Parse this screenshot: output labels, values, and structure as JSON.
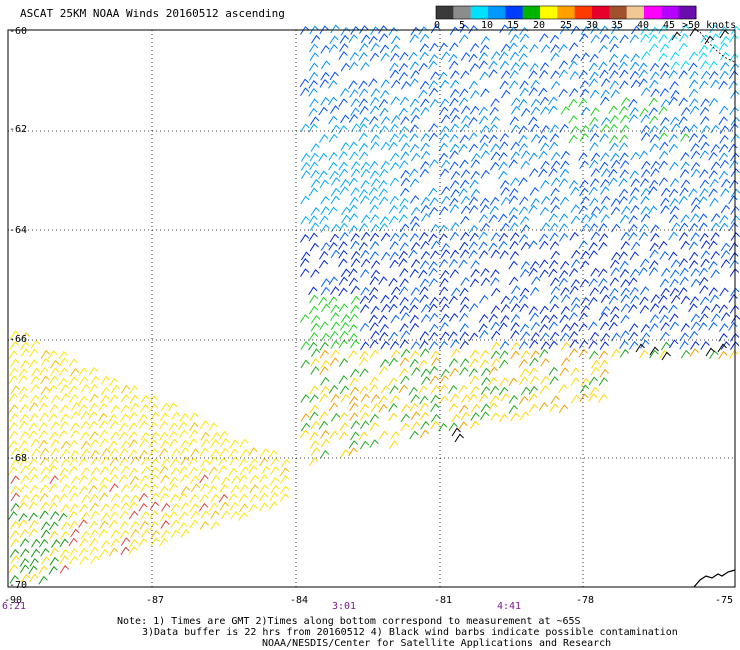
{
  "title": "ASCAT 25KM NOAA Winds 20160512 ascending",
  "colorbar": {
    "labels": [
      "0",
      "5",
      "10",
      "15",
      "20",
      "25",
      "30",
      "35",
      "40",
      "45",
      ">50 knots"
    ],
    "colors": [
      "#3a3a3a",
      "#8c8c8c",
      "#00e0ff",
      "#0097ff",
      "#003cff",
      "#00b400",
      "#ffff00",
      "#ffa000",
      "#ff3a00",
      "#e6002a",
      "#a0522d",
      "#f0c896",
      "#ff00ff",
      "#b400ff",
      "#6a0dad"
    ]
  },
  "map": {
    "lat_labels": [
      "-60",
      "-62",
      "-64",
      "-66",
      "-68",
      "-70"
    ],
    "lon_labels": [
      "-90",
      "-87",
      "-84",
      "-81",
      "-78",
      "-75"
    ]
  },
  "times": [
    {
      "label": "6:21"
    },
    {
      "label": "3:01"
    },
    {
      "label": "4:41"
    }
  ],
  "notes": [
    "Note: 1) Times are GMT 2)Times along bottom correspond to measurement at ~65S",
    "3)Data buffer is 22 hrs from 20160512 4) Black wind barbs indicate possible contamination",
    "NOAA/NESDIS/Center for Satellite Applications and Research"
  ]
}
